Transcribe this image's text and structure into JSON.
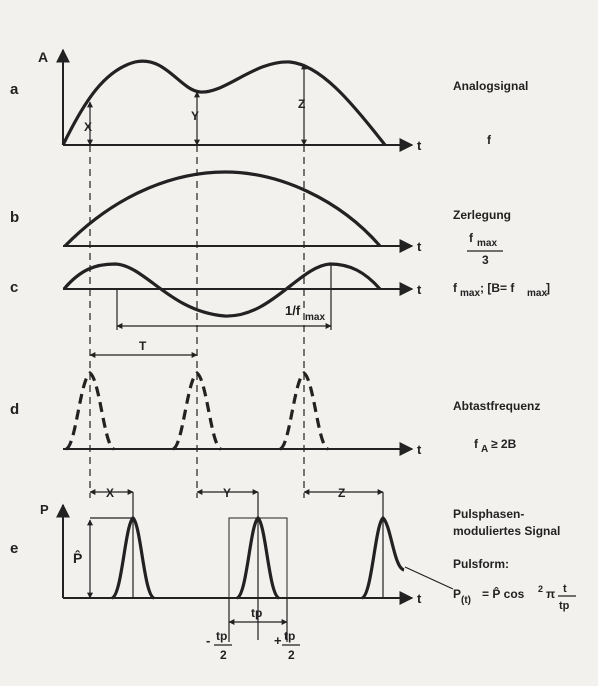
{
  "rows": {
    "a": {
      "letter": "a",
      "axis_y": "A",
      "axis_x": "t",
      "markers": [
        "X",
        "Y",
        "Z"
      ],
      "right_label": "Analogsignal",
      "right_note": "f"
    },
    "b": {
      "letter": "b",
      "axis_x": "t",
      "right_label": "Zerlegung",
      "right_note_num": "f",
      "right_note_sub": "max",
      "right_note_den": "3"
    },
    "c": {
      "letter": "c",
      "axis_x": "t",
      "right_label_f": "f",
      "right_label_sub": "max",
      "right_label_rest": "; [B= f",
      "right_label_sub2": "max",
      "right_label_end": "]",
      "period_label": "1/f",
      "period_sub": "max",
      "T_label": "T"
    },
    "d": {
      "letter": "d",
      "axis_x": "t",
      "right_label": "Abtastfrequenz",
      "fa": "f",
      "fa_sub": "A",
      "fa_rest": "≥ 2B"
    },
    "e": {
      "letter": "e",
      "axis_y": "P",
      "axis_x": "t",
      "shift_labels": [
        "X",
        "Y",
        "Z"
      ],
      "p_hat": "P̂",
      "tp": "tp",
      "minus": "-",
      "plus": "+",
      "half_num": "tp",
      "half_den": "2",
      "right_label_1": "Pulsphasen-",
      "right_label_2": "moduliertes Signal",
      "pulsform": "Pulsform:",
      "formula_lhs": "P",
      "formula_sub": "(t)",
      "formula_eq": "= P̂ cos",
      "formula_sup": "2",
      "formula_pi": "π",
      "formula_num": "t",
      "formula_den": "tp"
    }
  }
}
